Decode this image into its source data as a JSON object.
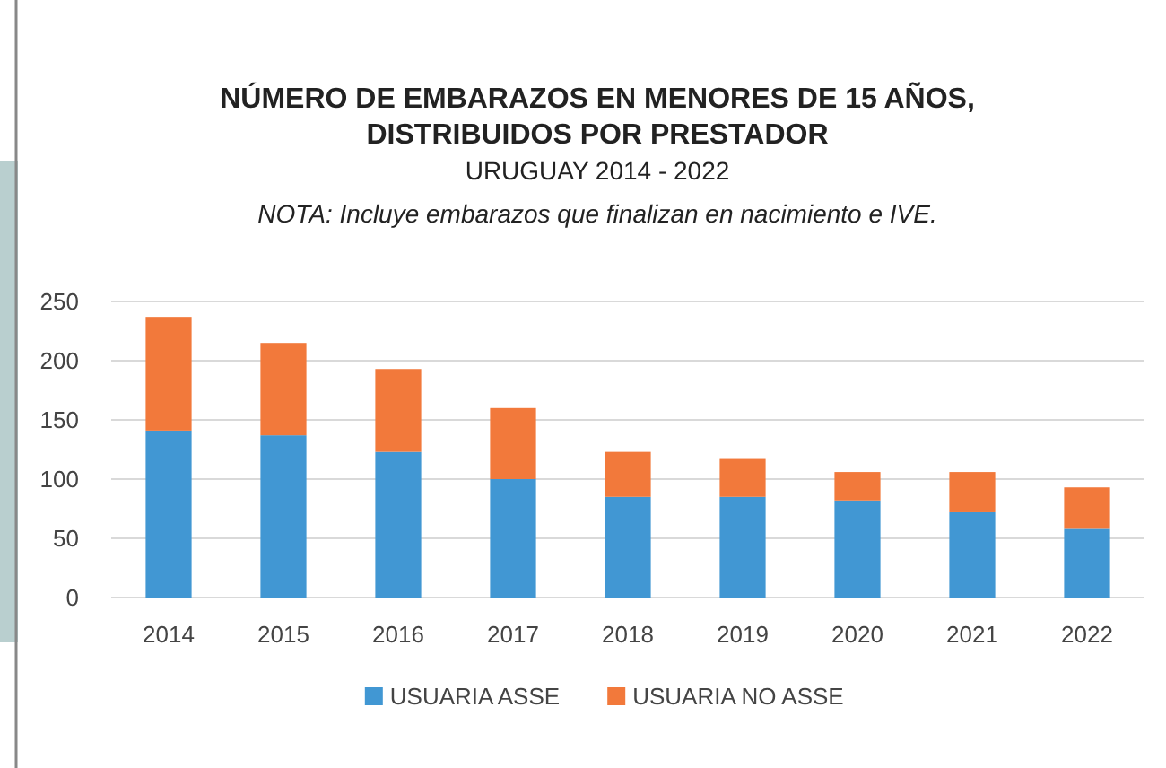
{
  "chart_data": {
    "type": "bar",
    "title": "NÚMERO DE EMBARAZOS EN MENORES DE 15 AÑOS,\nDISTRIBUIDOS POR PRESTADOR",
    "subtitle": "URUGUAY 2014 - 2022",
    "annotations": [
      "NOTA: Incluye embarazos que finalizan en nacimiento e IVE."
    ],
    "categories": [
      "2014",
      "2015",
      "2016",
      "2017",
      "2018",
      "2019",
      "2020",
      "2021",
      "2022"
    ],
    "series": [
      {
        "name": "USUARIA ASSE",
        "color": "#4197d3",
        "values": [
          141,
          137,
          123,
          100,
          85,
          85,
          82,
          72,
          58
        ]
      },
      {
        "name": "USUARIA NO ASSE",
        "color": "#f2793b",
        "values": [
          96,
          78,
          70,
          60,
          38,
          32,
          24,
          34,
          35
        ]
      }
    ],
    "stacked": true,
    "ylim": [
      0,
      250
    ],
    "yticks": [
      0,
      50,
      100,
      150,
      200,
      250
    ],
    "grid": "y",
    "legend": "bottom"
  }
}
